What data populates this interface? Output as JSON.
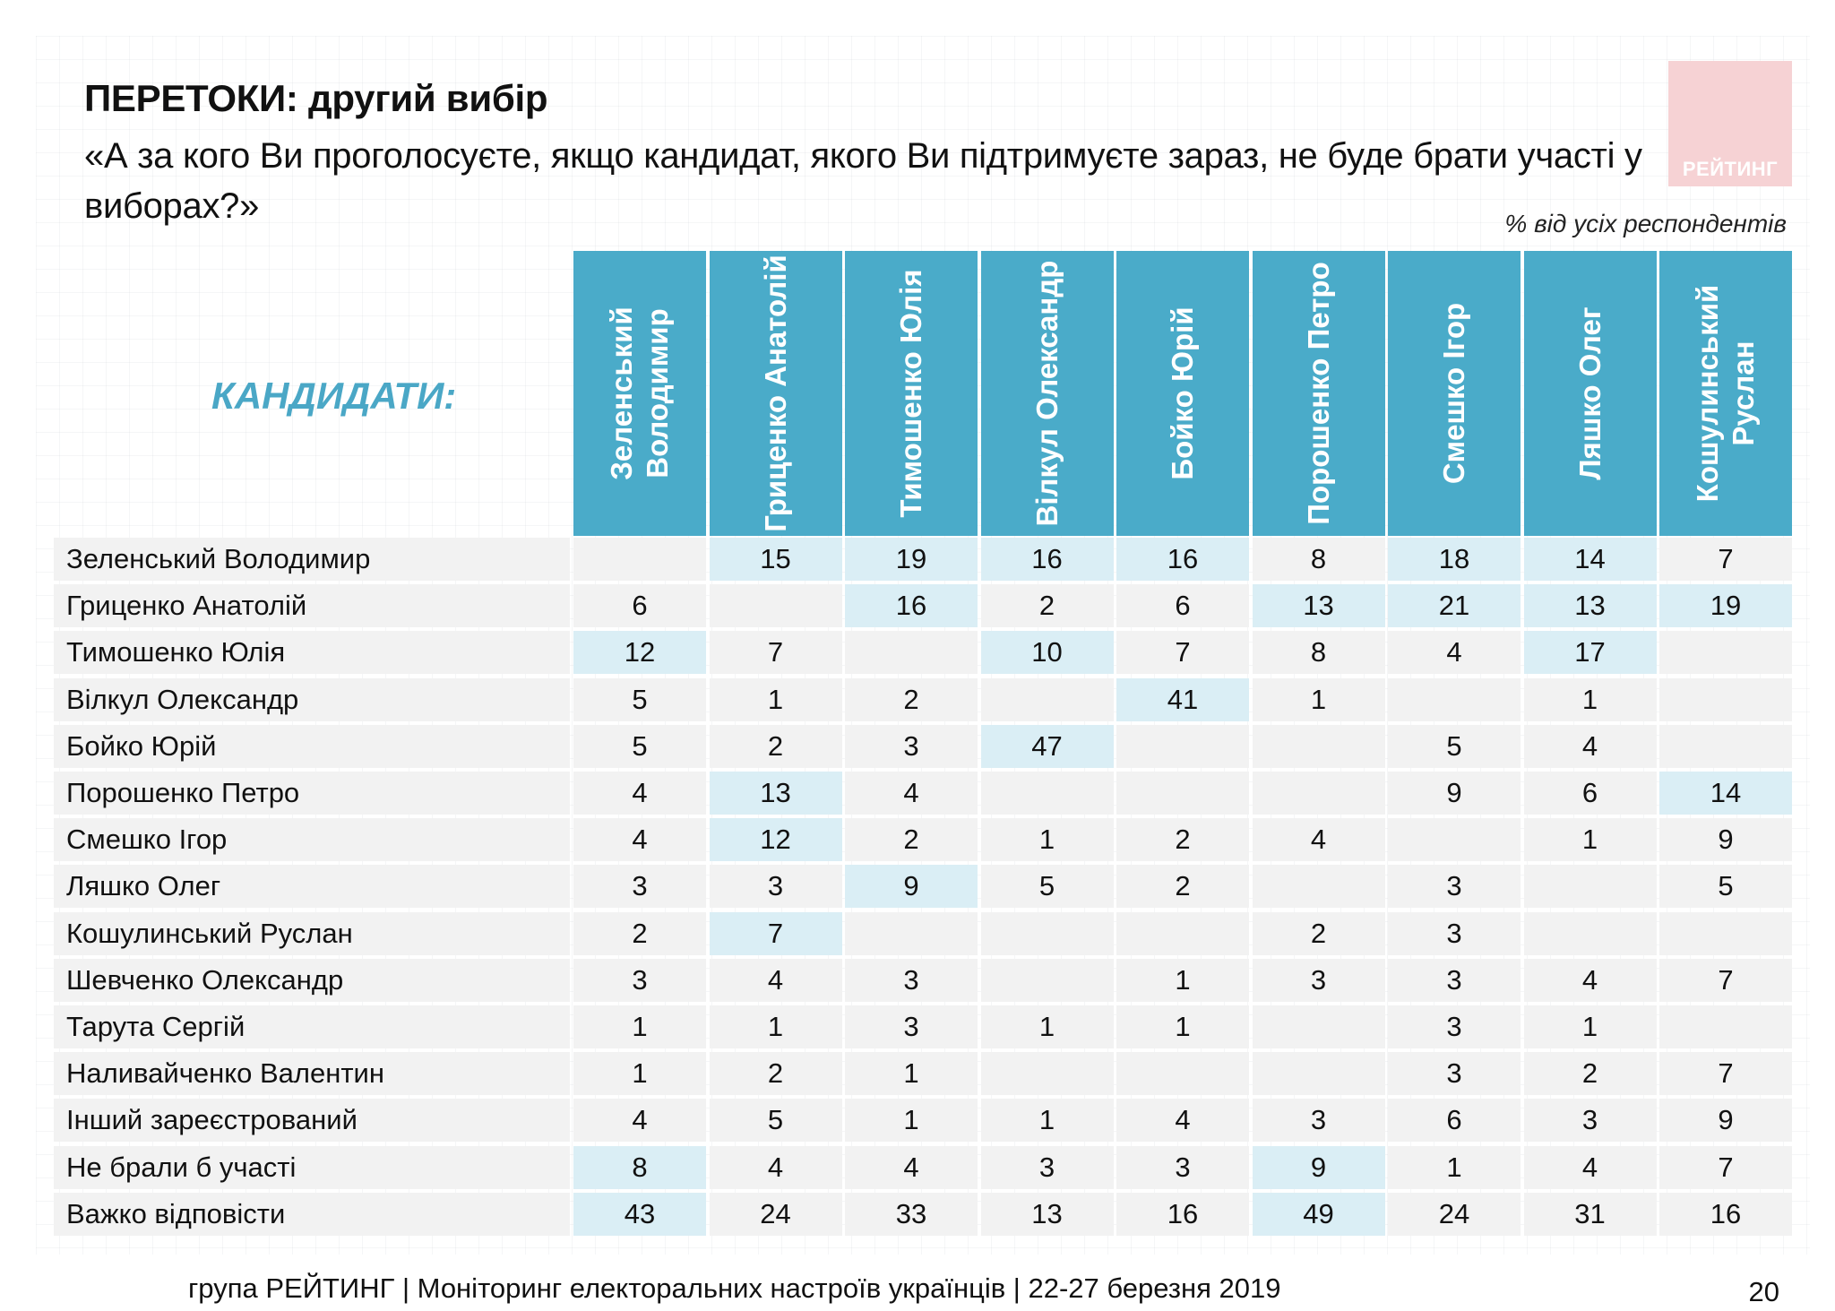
{
  "title": "ПЕРЕТОКИ: другий вибір",
  "subtitle": "«А за кого Ви проголосуєте, якщо кандидат, якого Ви підтримуєте зараз, не буде брати участі у виборах?»",
  "unit_note": "% від усіх респондентів",
  "logo_text": "РЕЙТИНГ",
  "row_header_label": "КАНДИДАТИ:",
  "columns": [
    [
      "Зеленський",
      "Володимир"
    ],
    [
      "Гриценко Анатолій"
    ],
    [
      "Тимошенко Юлія"
    ],
    [
      "Вілкул Олександр"
    ],
    [
      "Бойко Юрій"
    ],
    [
      "Порошенко Петро"
    ],
    [
      "Смешко Ігор"
    ],
    [
      "Ляшко Олег"
    ],
    [
      "Кошулинський",
      "Руслан"
    ]
  ],
  "rows": [
    {
      "label": "Зеленський Володимир",
      "values": [
        "",
        "15",
        "19",
        "16",
        "16",
        "8",
        "18",
        "14",
        "7"
      ],
      "highlight": [
        false,
        true,
        true,
        true,
        true,
        false,
        true,
        true,
        false
      ]
    },
    {
      "label": "Гриценко Анатолій",
      "values": [
        "6",
        "",
        "16",
        "2",
        "6",
        "13",
        "21",
        "13",
        "19"
      ],
      "highlight": [
        false,
        false,
        true,
        false,
        false,
        true,
        true,
        true,
        true
      ]
    },
    {
      "label": "Тимошенко Юлія",
      "values": [
        "12",
        "7",
        "",
        "10",
        "7",
        "8",
        "4",
        "17",
        ""
      ],
      "highlight": [
        true,
        false,
        false,
        true,
        false,
        false,
        false,
        true,
        false
      ]
    },
    {
      "label": "Вілкул Олександр",
      "values": [
        "5",
        "1",
        "2",
        "",
        "41",
        "1",
        "",
        "1",
        ""
      ],
      "highlight": [
        false,
        false,
        false,
        false,
        true,
        false,
        false,
        false,
        false
      ]
    },
    {
      "label": "Бойко Юрій",
      "values": [
        "5",
        "2",
        "3",
        "47",
        "",
        "",
        "5",
        "4",
        ""
      ],
      "highlight": [
        false,
        false,
        false,
        true,
        false,
        false,
        false,
        false,
        false
      ]
    },
    {
      "label": "Порошенко Петро",
      "values": [
        "4",
        "13",
        "4",
        "",
        "",
        "",
        "9",
        "6",
        "14"
      ],
      "highlight": [
        false,
        true,
        false,
        false,
        false,
        false,
        false,
        false,
        true
      ]
    },
    {
      "label": "Смешко Ігор",
      "values": [
        "4",
        "12",
        "2",
        "1",
        "2",
        "4",
        "",
        "1",
        "9"
      ],
      "highlight": [
        false,
        true,
        false,
        false,
        false,
        false,
        false,
        false,
        false
      ]
    },
    {
      "label": "Ляшко Олег",
      "values": [
        "3",
        "3",
        "9",
        "5",
        "2",
        "",
        "3",
        "",
        "5"
      ],
      "highlight": [
        false,
        false,
        true,
        false,
        false,
        false,
        false,
        false,
        false
      ]
    },
    {
      "label": "Кошулинський Руслан",
      "values": [
        "2",
        "7",
        "",
        "",
        "",
        "2",
        "3",
        "",
        ""
      ],
      "highlight": [
        false,
        true,
        false,
        false,
        false,
        false,
        false,
        false,
        false
      ]
    },
    {
      "label": "Шевченко Олександр",
      "values": [
        "3",
        "4",
        "3",
        "",
        "1",
        "3",
        "3",
        "4",
        "7"
      ],
      "highlight": [
        false,
        false,
        false,
        false,
        false,
        false,
        false,
        false,
        false
      ]
    },
    {
      "label": "Тарута Сергій",
      "values": [
        "1",
        "1",
        "3",
        "1",
        "1",
        "",
        "3",
        "1",
        ""
      ],
      "highlight": [
        false,
        false,
        false,
        false,
        false,
        false,
        false,
        false,
        false
      ]
    },
    {
      "label": "Наливайченко Валентин",
      "values": [
        "1",
        "2",
        "1",
        "",
        "",
        "",
        "3",
        "2",
        "7"
      ],
      "highlight": [
        false,
        false,
        false,
        false,
        false,
        false,
        false,
        false,
        false
      ]
    },
    {
      "label": "Інший зареєстрований",
      "values": [
        "4",
        "5",
        "1",
        "1",
        "4",
        "3",
        "6",
        "3",
        "9"
      ],
      "highlight": [
        false,
        false,
        false,
        false,
        false,
        false,
        false,
        false,
        false
      ]
    },
    {
      "label": "Не брали б участі",
      "values": [
        "8",
        "4",
        "4",
        "3",
        "3",
        "9",
        "1",
        "4",
        "7"
      ],
      "highlight": [
        true,
        false,
        false,
        false,
        false,
        true,
        false,
        false,
        false
      ]
    },
    {
      "label": "Важко відповісти",
      "values": [
        "43",
        "24",
        "33",
        "13",
        "16",
        "49",
        "24",
        "31",
        "16"
      ],
      "highlight": [
        true,
        false,
        false,
        false,
        false,
        true,
        false,
        false,
        false
      ]
    }
  ],
  "colors": {
    "header_bg": "#4aabc9",
    "highlight_bg": "#daeef5",
    "cell_bg": "#f2f2f2",
    "label_accent": "#4aa7c6"
  },
  "footer": "група РЕЙТИНГ | Моніторинг електоральних настроїв українців  |  22-27 березня 2019",
  "page_number": "20"
}
